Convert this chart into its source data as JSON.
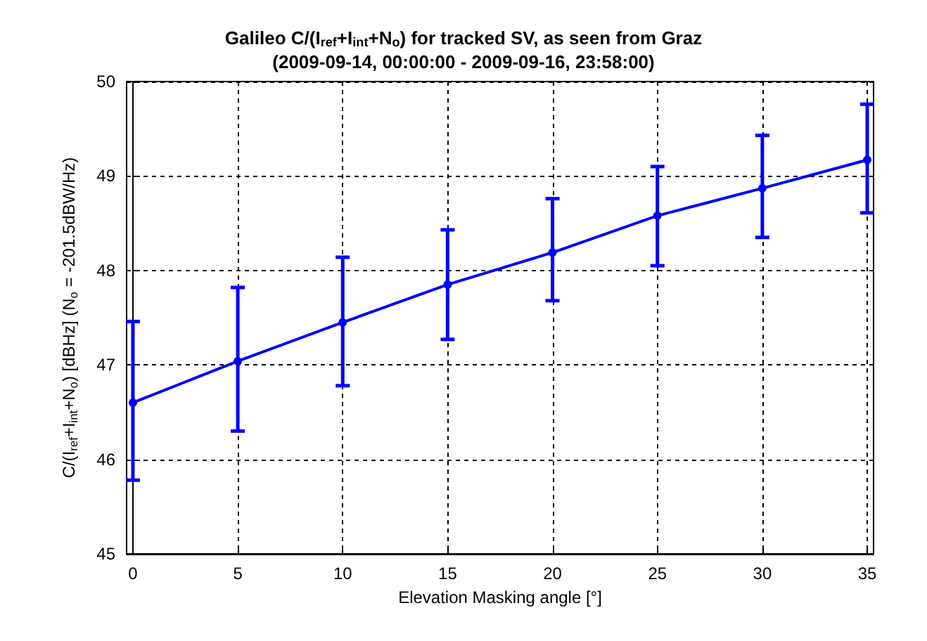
{
  "chart_data": {
    "type": "line",
    "title": "Galileo C/(I$_{ref}$+I$_{int}$+N$_{o}$) for tracked SV, as seen from Graz",
    "subtitle": "(2009-09-14, 00:00:00 - 2009-09-16, 23:58:00)",
    "xlabel": "Elevation Masking angle [°]",
    "ylabel": "C/(I$_{ref}$+I$_{int}$+N$_{o}$) [dBHz] (N$_{o}$ = -201.5dBW/Hz)",
    "x": [
      0,
      5,
      10,
      15,
      20,
      25,
      30,
      35
    ],
    "series": [
      {
        "color": "#0000ff",
        "values": [
          46.6,
          47.04,
          47.45,
          47.85,
          48.19,
          48.58,
          48.87,
          49.17
        ],
        "errors": [
          [
            45.78,
            47.46
          ],
          [
            46.3,
            47.82
          ],
          [
            46.78,
            48.14
          ],
          [
            47.27,
            48.43
          ],
          [
            47.68,
            48.76
          ],
          [
            48.05,
            49.1
          ],
          [
            48.35,
            49.43
          ],
          [
            48.61,
            49.76
          ]
        ]
      }
    ],
    "xlim": [
      -0.3,
      35.3
    ],
    "xticks": [
      0,
      5,
      10,
      15,
      20,
      25,
      30,
      35
    ],
    "ylim": [
      45,
      50
    ],
    "yticks": [
      45,
      46,
      47,
      48,
      49,
      50
    ],
    "grid": true,
    "marker": "circle",
    "line_style": "solid",
    "legend": false
  }
}
